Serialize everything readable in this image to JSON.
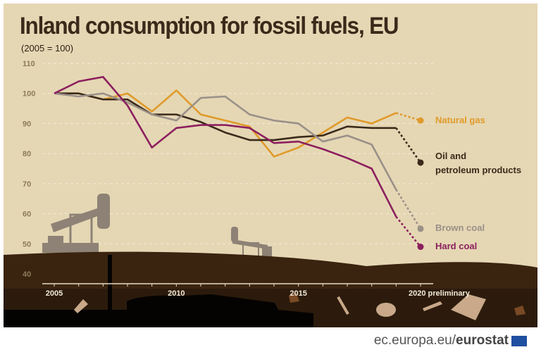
{
  "title": "Inland consumption for fossil fuels, EU",
  "subtitle": "(2005 = 100)",
  "footer": {
    "domain": "ec.europa.eu/",
    "brand": "eurostat"
  },
  "colors": {
    "background": "#e5d7b4",
    "ground": "#3a2410",
    "natural_gas": "#e09a2a",
    "oil": "#3a2a1a",
    "brown_coal": "#9a9088",
    "hard_coal": "#8c1f5e"
  },
  "chart_data": {
    "type": "line",
    "x": [
      2005,
      2006,
      2007,
      2008,
      2009,
      2010,
      2011,
      2012,
      2013,
      2014,
      2015,
      2016,
      2017,
      2018,
      2019,
      2020
    ],
    "xticks": [
      "2005",
      "2010",
      "2015",
      "2020"
    ],
    "xtick_suffix": "preliminary",
    "yticks": [
      40,
      50,
      60,
      70,
      80,
      90,
      100,
      110
    ],
    "ylim": [
      40,
      110
    ],
    "grid": true,
    "preliminary_from": 2019,
    "series": [
      {
        "name": "Natural gas",
        "color": "#e09a2a",
        "values": [
          100,
          100,
          98,
          100,
          94,
          101,
          93,
          91,
          89,
          79,
          82,
          87,
          92,
          90,
          93.5,
          91
        ]
      },
      {
        "name": "Oil and petroleum products",
        "name_lines": [
          "Oil and",
          "petroleum products"
        ],
        "color": "#3a2a1a",
        "values": [
          100,
          100,
          98,
          98,
          93,
          93,
          90.5,
          87,
          84.5,
          84.5,
          85.5,
          86,
          89,
          88.5,
          88.5,
          77
        ]
      },
      {
        "name": "Brown coal",
        "color": "#9a9088",
        "values": [
          100,
          99,
          100,
          97,
          93,
          91,
          98.5,
          99,
          93,
          91,
          90,
          84,
          86,
          83,
          68,
          55
        ]
      },
      {
        "name": "Hard coal",
        "color": "#8c1f5e",
        "values": [
          100,
          104,
          105.5,
          96,
          82,
          88.5,
          89.5,
          89.5,
          88.5,
          83.5,
          84,
          81.5,
          78.5,
          75,
          59,
          49
        ]
      }
    ]
  }
}
